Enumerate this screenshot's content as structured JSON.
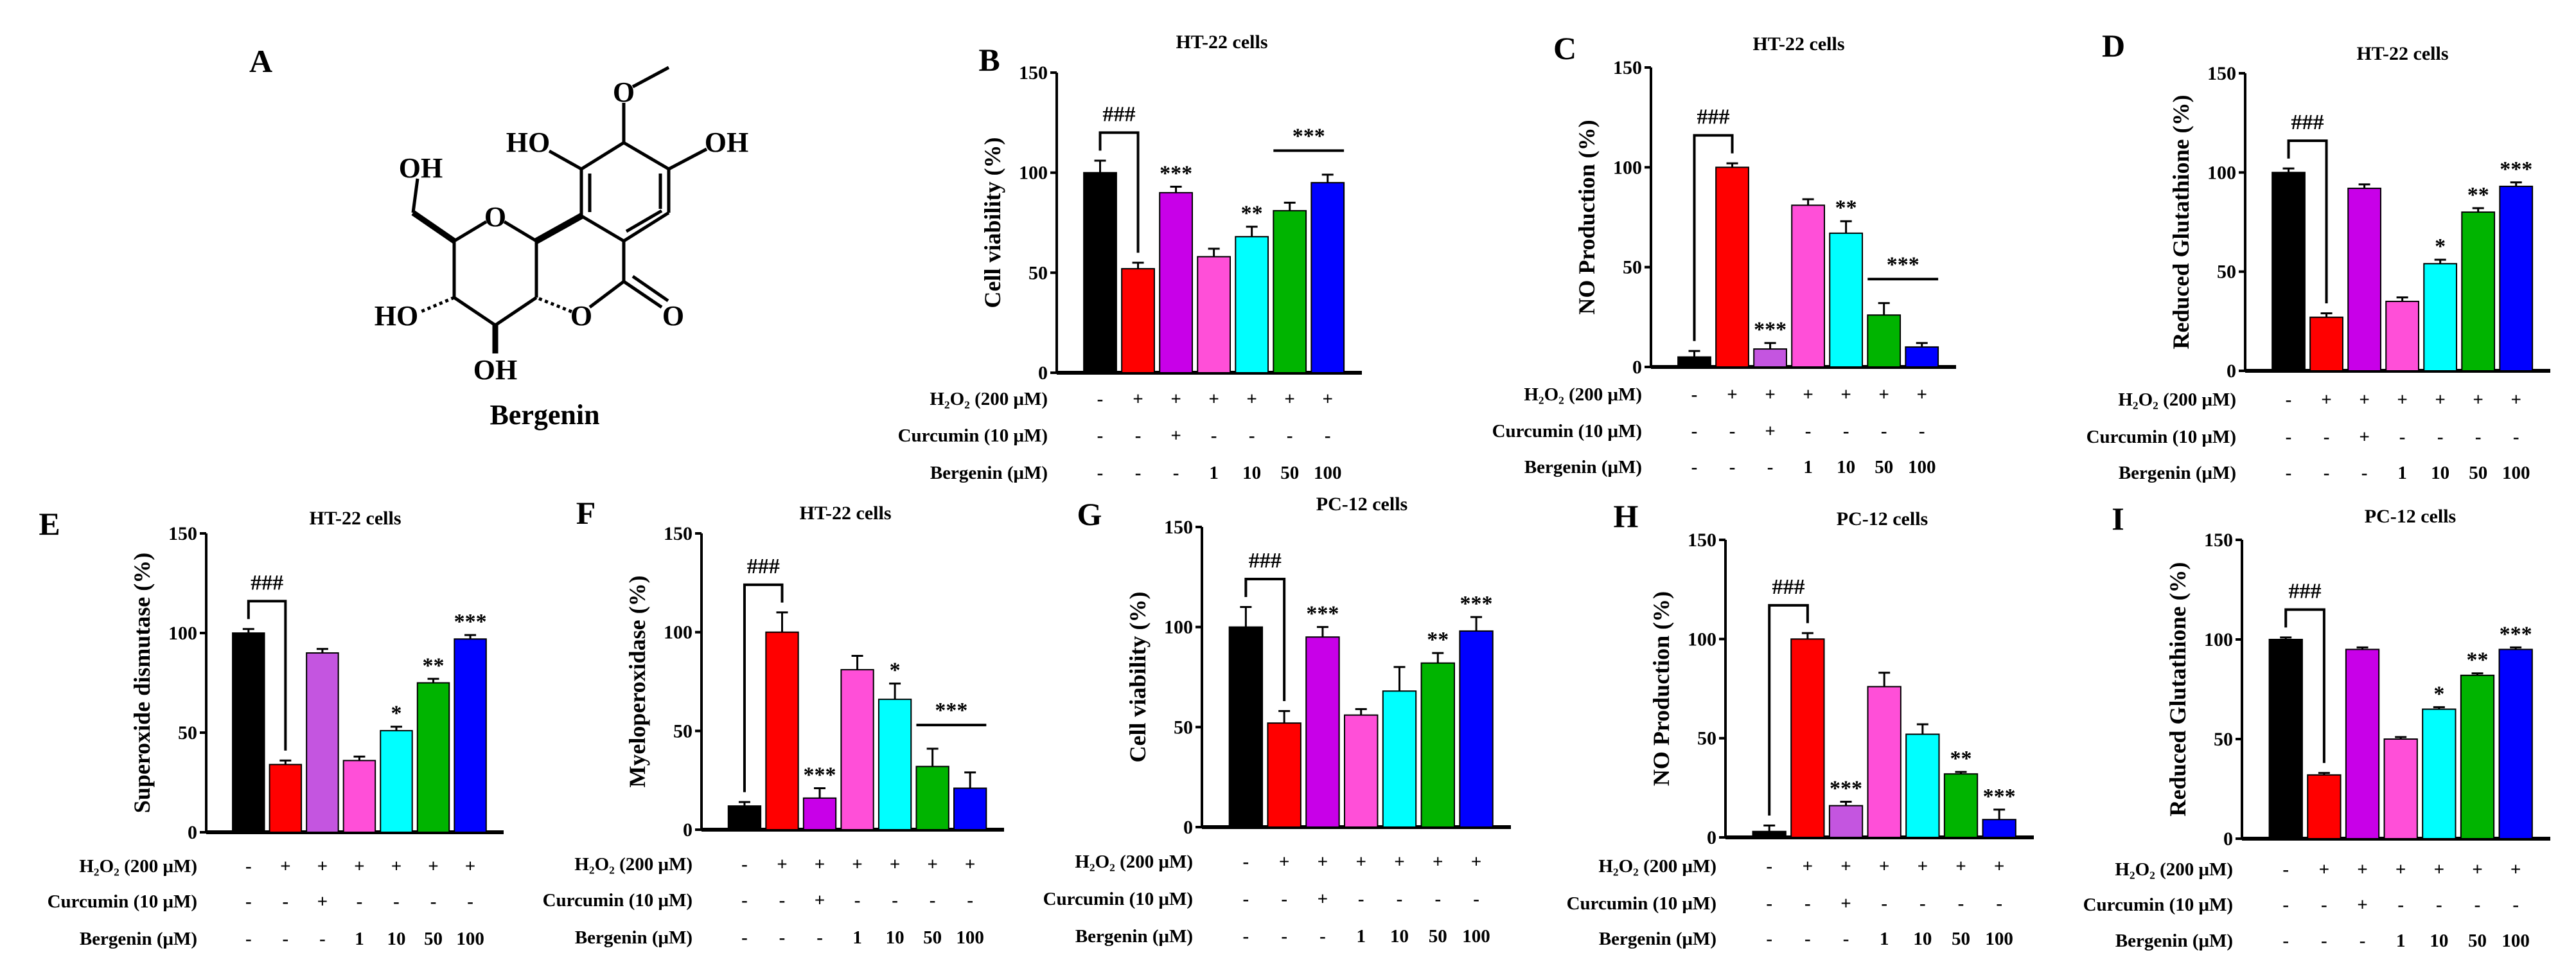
{
  "structure": {
    "letter": "A",
    "name": "Bergenin",
    "atoms": {
      "o_methoxy": "O",
      "oh_right": "OH",
      "ho_left": "HO",
      "oh_ch2": "OH",
      "o_ring": "O",
      "ho_c4": "HO",
      "o_lactone": "O",
      "o_carbonyl": "O",
      "oh_c3": "OH"
    }
  },
  "conditions": [
    {
      "label": "H₂O₂ (200 μM)",
      "entries": [
        "-",
        "+",
        "+",
        "+",
        "+",
        "+",
        "+"
      ]
    },
    {
      "label": "Curcumin (10 μM)",
      "entries": [
        "-",
        "-",
        "+",
        "-",
        "-",
        "-",
        "-"
      ]
    },
    {
      "label": "Bergenin (μM)",
      "entries": [
        "-",
        "-",
        "-",
        "1",
        "10",
        "50",
        "100"
      ]
    }
  ],
  "chart_data": [
    {
      "type": "bar",
      "letter": "B",
      "title": "HT-22 cells",
      "ylabel": "Cell viability (%)",
      "ylim": [
        0,
        150
      ],
      "yticks": [
        "0",
        "50",
        "100",
        "150"
      ],
      "values": [
        100,
        52,
        90,
        58,
        68,
        81,
        95
      ],
      "errors": [
        6,
        3,
        3,
        4,
        5,
        4,
        4
      ],
      "colors": [
        "#000000",
        "#ff0000",
        "#c800e8",
        "#ff4fd8",
        "#00ffff",
        "#00b400",
        "#0000ff"
      ],
      "sig": [
        "",
        "",
        "***",
        "",
        "**",
        "",
        ""
      ],
      "bracket": {
        "label": "###",
        "bars": [
          0,
          1
        ]
      },
      "group_sig": {
        "label": "***",
        "bars": [
          5,
          6
        ]
      }
    },
    {
      "type": "bar",
      "letter": "C",
      "title": "HT-22 cells",
      "ylabel": "NO Production (%)",
      "ylim": [
        0,
        150
      ],
      "yticks": [
        "0",
        "50",
        "100",
        "150"
      ],
      "values": [
        5,
        100,
        9,
        81,
        67,
        26,
        10
      ],
      "errors": [
        3,
        2,
        3,
        3,
        6,
        6,
        2
      ],
      "colors": [
        "#000000",
        "#ff0000",
        "#c455e0",
        "#ff4fd8",
        "#00ffff",
        "#00b400",
        "#0000ff"
      ],
      "sig": [
        "",
        "",
        "***",
        "",
        "**",
        "",
        ""
      ],
      "bracket": {
        "label": "###",
        "bars": [
          0,
          1
        ]
      },
      "group_sig": {
        "label": "***",
        "bars": [
          5,
          6
        ]
      }
    },
    {
      "type": "bar",
      "letter": "D",
      "title": "HT-22 cells",
      "ylabel": "Reduced Glutathione (%)",
      "ylim": [
        0,
        150
      ],
      "yticks": [
        "0",
        "50",
        "100",
        "150"
      ],
      "values": [
        100,
        27,
        92,
        35,
        54,
        80,
        93
      ],
      "errors": [
        2,
        2,
        2,
        2,
        2,
        2,
        2
      ],
      "colors": [
        "#000000",
        "#ff0000",
        "#c800e8",
        "#ff4fd8",
        "#00ffff",
        "#00b400",
        "#0000ff"
      ],
      "sig": [
        "",
        "",
        "",
        "",
        "*",
        "**",
        "***"
      ],
      "bracket": {
        "label": "###",
        "bars": [
          0,
          1
        ]
      },
      "group_sig": null
    },
    {
      "type": "bar",
      "letter": "E",
      "title": "HT-22 cells",
      "ylabel": "Superoxide dismutase (%)",
      "ylim": [
        0,
        150
      ],
      "yticks": [
        "0",
        "50",
        "100",
        "150"
      ],
      "values": [
        100,
        34,
        90,
        36,
        51,
        75,
        97
      ],
      "errors": [
        2,
        2,
        2,
        2,
        2,
        2,
        2
      ],
      "colors": [
        "#000000",
        "#ff0000",
        "#c455e0",
        "#ff4fd8",
        "#00ffff",
        "#00b400",
        "#0000ff"
      ],
      "sig": [
        "",
        "",
        "",
        "",
        "*",
        "**",
        "***"
      ],
      "bracket": {
        "label": "###",
        "bars": [
          0,
          1
        ]
      },
      "group_sig": null
    },
    {
      "type": "bar",
      "letter": "F",
      "title": "HT-22 cells",
      "ylabel": "Myeloperoxidase (%)",
      "ylim": [
        0,
        150
      ],
      "yticks": [
        "0",
        "50",
        "100",
        "150"
      ],
      "values": [
        12,
        100,
        16,
        81,
        66,
        32,
        21
      ],
      "errors": [
        2,
        10,
        5,
        7,
        8,
        9,
        8
      ],
      "colors": [
        "#000000",
        "#ff0000",
        "#c800e8",
        "#ff4fd8",
        "#00ffff",
        "#00b400",
        "#0000ff"
      ],
      "sig": [
        "",
        "",
        "***",
        "",
        "*",
        "",
        ""
      ],
      "bracket": {
        "label": "###",
        "bars": [
          0,
          1
        ]
      },
      "group_sig": {
        "label": "***",
        "bars": [
          5,
          6
        ]
      }
    },
    {
      "type": "bar",
      "letter": "G",
      "title": "PC-12 cells",
      "ylabel": "Cell viability (%)",
      "ylim": [
        0,
        150
      ],
      "yticks": [
        "0",
        "50",
        "100",
        "150"
      ],
      "values": [
        100,
        52,
        95,
        56,
        68,
        82,
        98
      ],
      "errors": [
        10,
        6,
        5,
        3,
        12,
        5,
        7
      ],
      "colors": [
        "#000000",
        "#ff0000",
        "#c800e8",
        "#ff4fd8",
        "#00ffff",
        "#00b400",
        "#0000ff"
      ],
      "sig": [
        "",
        "",
        "***",
        "",
        "",
        "**",
        "***"
      ],
      "bracket": {
        "label": "###",
        "bars": [
          0,
          1
        ]
      },
      "group_sig": null
    },
    {
      "type": "bar",
      "letter": "H",
      "title": "PC-12 cells",
      "ylabel": "NO Production (%)",
      "ylim": [
        0,
        150
      ],
      "yticks": [
        "0",
        "50",
        "100",
        "150"
      ],
      "values": [
        3,
        100,
        16,
        76,
        52,
        32,
        9
      ],
      "errors": [
        3,
        3,
        2,
        7,
        5,
        1,
        5
      ],
      "colors": [
        "#000000",
        "#ff0000",
        "#c455e0",
        "#ff4fd8",
        "#00ffff",
        "#00b400",
        "#0000ff"
      ],
      "sig": [
        "",
        "",
        "***",
        "",
        "",
        "**",
        "***"
      ],
      "bracket": {
        "label": "###",
        "bars": [
          0,
          1
        ]
      },
      "group_sig": null
    },
    {
      "type": "bar",
      "letter": "I",
      "title": "PC-12 cells",
      "ylabel": "Reduced Glutathione (%)",
      "ylim": [
        0,
        150
      ],
      "yticks": [
        "0",
        "50",
        "100",
        "150"
      ],
      "values": [
        100,
        32,
        95,
        50,
        65,
        82,
        95
      ],
      "errors": [
        1,
        1,
        1,
        1,
        1,
        1,
        1
      ],
      "colors": [
        "#000000",
        "#ff0000",
        "#c800e8",
        "#ff4fd8",
        "#00ffff",
        "#00b400",
        "#0000ff"
      ],
      "sig": [
        "",
        "",
        "",
        "",
        "*",
        "**",
        "***"
      ],
      "bracket": {
        "label": "###",
        "bars": [
          0,
          1
        ]
      },
      "group_sig": null
    }
  ]
}
